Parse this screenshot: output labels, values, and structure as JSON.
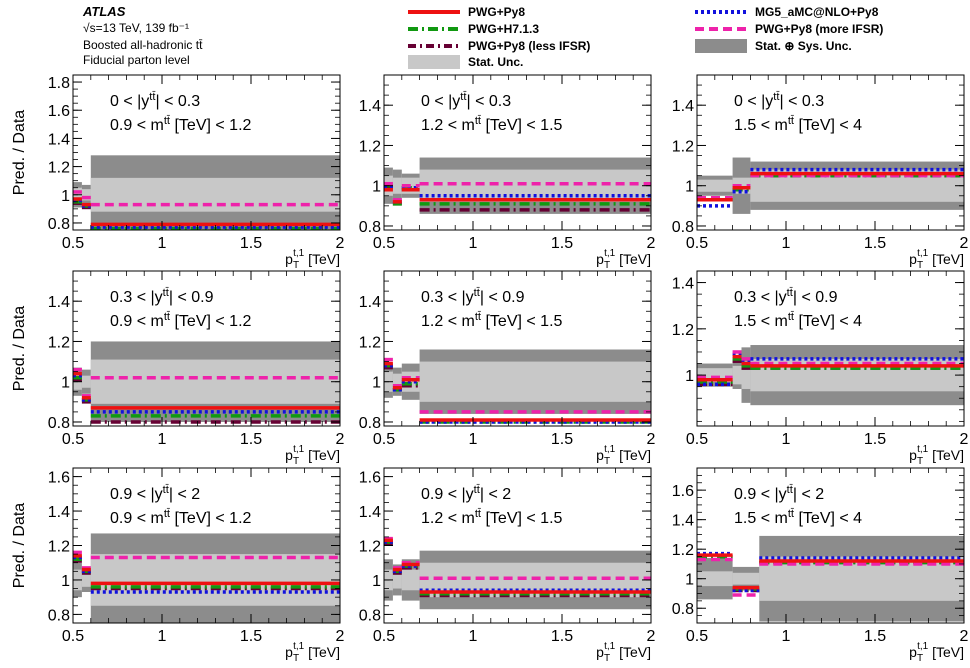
{
  "header": {
    "experiment": "ATLAS",
    "energy_lumi": "√s=13 TeV, 139 fb⁻¹",
    "channel": "Boosted all-hadronic tt̄",
    "level": "Fiducial parton level"
  },
  "legend": [
    {
      "name": "PWG+Py8",
      "style": "solid",
      "color": "#ee1111"
    },
    {
      "name": "PWG+H7.1.3",
      "style": "dashdot",
      "color": "#119911"
    },
    {
      "name": "PWG+Py8 (less IFSR)",
      "style": "dashdot",
      "color": "#660033"
    },
    {
      "name": "Stat. Unc.",
      "style": "box",
      "color": "#c8c8c8"
    },
    {
      "name": "MG5_aMC@NLO+Py8",
      "style": "dotted",
      "color": "#1111dd"
    },
    {
      "name": "PWG+Py8 (more IFSR)",
      "style": "dashed",
      "color": "#ee22aa"
    },
    {
      "name": "Stat. ⊕ Sys. Unc.",
      "style": "box",
      "color": "#8c8c8c"
    }
  ],
  "chart_data": [
    {
      "type": "step",
      "row": 0,
      "col": 0,
      "ylabel": "Pred. / Data",
      "xlabel": "p_T^{t,1} [TeV]",
      "xlim": [
        0.5,
        2.0
      ],
      "ylim": [
        0.75,
        1.85
      ],
      "yticks": [
        0.8,
        1,
        1.2,
        1.4,
        1.6,
        1.8
      ],
      "ytick_labels": [
        "0.8",
        "1",
        "1.2",
        "1.4",
        "1.6",
        "1.8"
      ],
      "xticks": [
        0.5,
        1,
        1.5,
        2
      ],
      "xtick_labels": [
        "0.5",
        "1",
        "1.5",
        "2"
      ],
      "annotations": [
        "0 < |y^{tt̄}| < 0.3",
        "0.9 < m^{tt̄} [TeV] < 1.2"
      ],
      "bin_edges": [
        0.5,
        0.55,
        0.6,
        2.0
      ],
      "stat_unc": [
        0.05,
        0.04,
        0.12
      ],
      "total_unc": [
        0.09,
        0.07,
        0.28
      ],
      "series": [
        {
          "name": "PWG+Py8",
          "values": [
            0.97,
            0.93,
            0.79
          ]
        },
        {
          "name": "PWG+H7.1.3",
          "values": [
            0.95,
            0.92,
            0.76
          ]
        },
        {
          "name": "PWG+Py8 (less IFSR)",
          "values": [
            0.94,
            0.91,
            0.74
          ]
        },
        {
          "name": "MG5_aMC@NLO+Py8",
          "values": [
            0.96,
            0.92,
            0.77
          ]
        },
        {
          "name": "PWG+Py8 (more IFSR)",
          "values": [
            1.02,
            0.98,
            0.93
          ]
        }
      ]
    },
    {
      "type": "step",
      "row": 0,
      "col": 1,
      "ylabel": "",
      "xlabel": "p_T^{t,1} [TeV]",
      "xlim": [
        0.5,
        2.0
      ],
      "ylim": [
        0.78,
        1.55
      ],
      "yticks": [
        0.8,
        1,
        1.2,
        1.4
      ],
      "ytick_labels": [
        "0.8",
        "1",
        "1.2",
        "1.4"
      ],
      "xticks": [
        0.5,
        1,
        1.5,
        2
      ],
      "xtick_labels": [
        "0.5",
        "1",
        "1.5",
        "2"
      ],
      "annotations": [
        "0 < |y^{tt̄}| < 0.3",
        "1.2 < m^{tt̄} [TeV] < 1.5"
      ],
      "bin_edges": [
        0.5,
        0.55,
        0.6,
        0.7,
        2.0
      ],
      "stat_unc": [
        0.05,
        0.04,
        0.04,
        0.08
      ],
      "total_unc": [
        0.09,
        0.08,
        0.06,
        0.14
      ],
      "series": [
        {
          "name": "PWG+Py8",
          "values": [
            0.98,
            0.92,
            0.98,
            0.93
          ]
        },
        {
          "name": "PWG+H7.1.3",
          "values": [
            1.0,
            0.91,
            0.99,
            0.91
          ]
        },
        {
          "name": "PWG+Py8 (less IFSR)",
          "values": [
            0.99,
            0.91,
            0.98,
            0.88
          ]
        },
        {
          "name": "MG5_aMC@NLO+Py8",
          "values": [
            0.99,
            0.92,
            0.99,
            0.95
          ]
        },
        {
          "name": "PWG+Py8 (more IFSR)",
          "values": [
            1.01,
            0.93,
            1.0,
            1.01
          ]
        }
      ]
    },
    {
      "type": "step",
      "row": 0,
      "col": 2,
      "ylabel": "",
      "xlabel": "p_T^{t,1} [TeV]",
      "xlim": [
        0.5,
        2.0
      ],
      "ylim": [
        0.78,
        1.55
      ],
      "yticks": [
        0.8,
        1,
        1.2,
        1.4
      ],
      "ytick_labels": [
        "0.8",
        "1",
        "1.2",
        "1.4"
      ],
      "xticks": [
        0.5,
        1,
        1.5,
        2
      ],
      "xtick_labels": [
        "0.5",
        "1",
        "1.5",
        "2"
      ],
      "annotations": [
        "0 < |y^{tt̄}| < 0.3",
        "1.5 < m^{tt̄} [TeV] < 4"
      ],
      "bin_edges": [
        0.5,
        0.7,
        0.8,
        2.0
      ],
      "stat_unc": [
        0.03,
        0.04,
        0.08
      ],
      "total_unc": [
        0.05,
        0.14,
        0.12
      ],
      "series": [
        {
          "name": "PWG+Py8",
          "values": [
            0.93,
            0.99,
            1.06
          ]
        },
        {
          "name": "PWG+H7.1.3",
          "values": [
            0.93,
            0.98,
            1.05
          ]
        },
        {
          "name": "PWG+Py8 (less IFSR)",
          "values": [
            0.93,
            0.98,
            1.05
          ]
        },
        {
          "name": "MG5_aMC@NLO+Py8",
          "values": [
            0.9,
            0.97,
            1.08
          ]
        },
        {
          "name": "PWG+Py8 (more IFSR)",
          "values": [
            0.94,
            1.0,
            1.05
          ]
        }
      ]
    },
    {
      "type": "step",
      "row": 1,
      "col": 0,
      "ylabel": "Pred. / Data",
      "xlabel": "p_T^{t,1} [TeV]",
      "xlim": [
        0.5,
        2.0
      ],
      "ylim": [
        0.78,
        1.55
      ],
      "yticks": [
        0.8,
        1,
        1.2,
        1.4
      ],
      "ytick_labels": [
        "0.8",
        "1",
        "1.2",
        "1.4"
      ],
      "xticks": [
        0.5,
        1,
        1.5,
        2
      ],
      "xtick_labels": [
        "0.5",
        "1",
        "1.5",
        "2"
      ],
      "annotations": [
        "0.3 < |y^{tt̄}| < 0.9",
        "0.9 < m^{tt̄} [TeV] < 1.2"
      ],
      "bin_edges": [
        0.5,
        0.55,
        0.6,
        2.0
      ],
      "stat_unc": [
        0.04,
        0.03,
        0.11
      ],
      "total_unc": [
        0.07,
        0.06,
        0.2
      ],
      "series": [
        {
          "name": "PWG+Py8",
          "values": [
            1.04,
            0.92,
            0.87
          ]
        },
        {
          "name": "PWG+H7.1.3",
          "values": [
            1.02,
            0.91,
            0.83
          ]
        },
        {
          "name": "PWG+Py8 (less IFSR)",
          "values": [
            1.01,
            0.9,
            0.8
          ]
        },
        {
          "name": "MG5_aMC@NLO+Py8",
          "values": [
            1.03,
            0.91,
            0.85
          ]
        },
        {
          "name": "PWG+Py8 (more IFSR)",
          "values": [
            1.06,
            0.93,
            1.02
          ]
        }
      ]
    },
    {
      "type": "step",
      "row": 1,
      "col": 1,
      "ylabel": "",
      "xlabel": "p_T^{t,1} [TeV]",
      "xlim": [
        0.5,
        2.0
      ],
      "ylim": [
        0.78,
        1.55
      ],
      "yticks": [
        0.8,
        1,
        1.2,
        1.4
      ],
      "ytick_labels": [
        "0.8",
        "1",
        "1.2",
        "1.4"
      ],
      "xticks": [
        0.5,
        1,
        1.5,
        2
      ],
      "xtick_labels": [
        "0.5",
        "1",
        "1.5",
        "2"
      ],
      "annotations": [
        "0.3 < |y^{tt̄}| < 0.9",
        "1.2 < m^{tt̄} [TeV] < 1.5"
      ],
      "bin_edges": [
        0.5,
        0.55,
        0.6,
        0.7,
        2.0
      ],
      "stat_unc": [
        0.05,
        0.04,
        0.05,
        0.1
      ],
      "total_unc": [
        0.08,
        0.07,
        0.09,
        0.16
      ],
      "series": [
        {
          "name": "PWG+Py8",
          "values": [
            1.09,
            0.97,
            1.01,
            0.81
          ]
        },
        {
          "name": "PWG+H7.1.3",
          "values": [
            1.08,
            0.96,
            0.99,
            0.8
          ]
        },
        {
          "name": "PWG+Py8 (less IFSR)",
          "values": [
            1.07,
            0.96,
            0.98,
            0.77
          ]
        },
        {
          "name": "MG5_aMC@NLO+Py8",
          "values": [
            1.08,
            0.96,
            1.0,
            0.8
          ]
        },
        {
          "name": "PWG+Py8 (more IFSR)",
          "values": [
            1.11,
            0.98,
            1.02,
            0.85
          ]
        }
      ]
    },
    {
      "type": "step",
      "row": 1,
      "col": 2,
      "ylabel": "",
      "xlabel": "p_T^{t,1} [TeV]",
      "xlim": [
        0.5,
        2.0
      ],
      "ylim": [
        0.78,
        1.45
      ],
      "yticks": [
        1,
        1.2,
        1.4
      ],
      "ytick_labels": [
        "1",
        "1.2",
        "1.4"
      ],
      "xticks": [
        0.5,
        1,
        1.5,
        2
      ],
      "xtick_labels": [
        "0.5",
        "1",
        "1.5",
        "2"
      ],
      "annotations": [
        "0.3 < |y^{tt̄}| < 0.9",
        "1.5 < m^{tt̄} [TeV] < 4"
      ],
      "bin_edges": [
        0.5,
        0.7,
        0.75,
        0.8,
        2.0
      ],
      "stat_unc": [
        0.03,
        0.04,
        0.06,
        0.07
      ],
      "total_unc": [
        0.05,
        0.06,
        0.12,
        0.13
      ],
      "series": [
        {
          "name": "PWG+Py8",
          "values": [
            0.98,
            1.08,
            1.05,
            1.04
          ]
        },
        {
          "name": "PWG+H7.1.3",
          "values": [
            0.97,
            1.07,
            1.04,
            1.03
          ]
        },
        {
          "name": "PWG+Py8 (less IFSR)",
          "values": [
            0.96,
            1.06,
            1.03,
            1.03
          ]
        },
        {
          "name": "MG5_aMC@NLO+Py8",
          "values": [
            0.96,
            1.09,
            1.06,
            1.07
          ]
        },
        {
          "name": "PWG+Py8 (more IFSR)",
          "values": [
            0.99,
            1.1,
            1.07,
            1.05
          ]
        }
      ]
    },
    {
      "type": "step",
      "row": 2,
      "col": 0,
      "ylabel": "Pred. / Data",
      "xlabel": "p_T^{t,1} [TeV]",
      "xlim": [
        0.5,
        2.0
      ],
      "ylim": [
        0.75,
        1.65
      ],
      "yticks": [
        0.8,
        1,
        1.2,
        1.4,
        1.6
      ],
      "ytick_labels": [
        "0.8",
        "1",
        "1.2",
        "1.4",
        "1.6"
      ],
      "xticks": [
        0.5,
        1,
        1.5,
        2
      ],
      "xtick_labels": [
        "0.5",
        "1",
        "1.5",
        "2"
      ],
      "annotations": [
        "0.9 < |y^{tt̄}| < 2",
        "0.9 < m^{tt̄} [TeV] < 1.2"
      ],
      "bin_edges": [
        0.5,
        0.55,
        0.6,
        2.0
      ],
      "stat_unc": [
        0.06,
        0.04,
        0.15
      ],
      "total_unc": [
        0.1,
        0.07,
        0.27
      ],
      "series": [
        {
          "name": "PWG+Py8",
          "values": [
            1.14,
            1.06,
            0.98
          ]
        },
        {
          "name": "PWG+H7.1.3",
          "values": [
            1.12,
            1.05,
            0.96
          ]
        },
        {
          "name": "PWG+Py8 (less IFSR)",
          "values": [
            1.11,
            1.04,
            0.95
          ]
        },
        {
          "name": "MG5_aMC@NLO+Py8",
          "values": [
            1.13,
            1.05,
            0.93
          ]
        },
        {
          "name": "PWG+Py8 (more IFSR)",
          "values": [
            1.16,
            1.07,
            1.13
          ]
        }
      ]
    },
    {
      "type": "step",
      "row": 2,
      "col": 1,
      "ylabel": "",
      "xlabel": "p_T^{t,1} [TeV]",
      "xlim": [
        0.5,
        2.0
      ],
      "ylim": [
        0.75,
        1.65
      ],
      "yticks": [
        0.8,
        1,
        1.2,
        1.4,
        1.6
      ],
      "ytick_labels": [
        "0.8",
        "1",
        "1.2",
        "1.4",
        "1.6"
      ],
      "xticks": [
        0.5,
        1,
        1.5,
        2
      ],
      "xtick_labels": [
        "0.5",
        "1",
        "1.5",
        "2"
      ],
      "annotations": [
        "0.9 < |y^{tt̄}| < 2",
        "1.2 < m^{tt̄} [TeV] < 1.5"
      ],
      "bin_edges": [
        0.5,
        0.55,
        0.6,
        0.7,
        2.0
      ],
      "stat_unc": [
        0.06,
        0.05,
        0.06,
        0.1
      ],
      "total_unc": [
        0.12,
        0.09,
        0.12,
        0.17
      ],
      "series": [
        {
          "name": "PWG+Py8",
          "values": [
            1.23,
            1.06,
            1.09,
            0.93
          ]
        },
        {
          "name": "PWG+H7.1.3",
          "values": [
            1.22,
            1.05,
            1.08,
            0.92
          ]
        },
        {
          "name": "PWG+Py8 (less IFSR)",
          "values": [
            1.21,
            1.04,
            1.07,
            0.91
          ]
        },
        {
          "name": "MG5_aMC@NLO+Py8",
          "values": [
            1.22,
            1.05,
            1.08,
            0.94
          ]
        },
        {
          "name": "PWG+Py8 (more IFSR)",
          "values": [
            1.24,
            1.07,
            1.1,
            1.01
          ]
        }
      ]
    },
    {
      "type": "step",
      "row": 2,
      "col": 2,
      "ylabel": "",
      "xlabel": "p_T^{t,1} [TeV]",
      "xlim": [
        0.5,
        2.0
      ],
      "ylim": [
        0.7,
        1.75
      ],
      "yticks": [
        0.8,
        1,
        1.2,
        1.4,
        1.6
      ],
      "ytick_labels": [
        "0.8",
        "1",
        "1.2",
        "1.4",
        "1.6"
      ],
      "xticks": [
        0.5,
        1,
        1.5,
        2
      ],
      "xtick_labels": [
        "0.5",
        "1",
        "1.5",
        "2"
      ],
      "annotations": [
        "0.9 < |y^{tt̄}| < 2",
        "1.5 < m^{tt̄} [TeV] < 4"
      ],
      "bin_edges": [
        0.5,
        0.7,
        0.85,
        2.0
      ],
      "stat_unc": [
        0.05,
        0.04,
        0.15
      ],
      "total_unc": [
        0.14,
        0.08,
        0.29
      ],
      "series": [
        {
          "name": "PWG+Py8",
          "values": [
            1.16,
            0.94,
            1.12
          ]
        },
        {
          "name": "PWG+H7.1.3",
          "values": [
            1.15,
            0.93,
            1.11
          ]
        },
        {
          "name": "PWG+Py8 (less IFSR)",
          "values": [
            1.15,
            0.92,
            1.11
          ]
        },
        {
          "name": "MG5_aMC@NLO+Py8",
          "values": [
            1.17,
            0.92,
            1.14
          ]
        },
        {
          "name": "PWG+Py8 (more IFSR)",
          "values": [
            1.13,
            0.89,
            1.1
          ]
        }
      ]
    }
  ]
}
